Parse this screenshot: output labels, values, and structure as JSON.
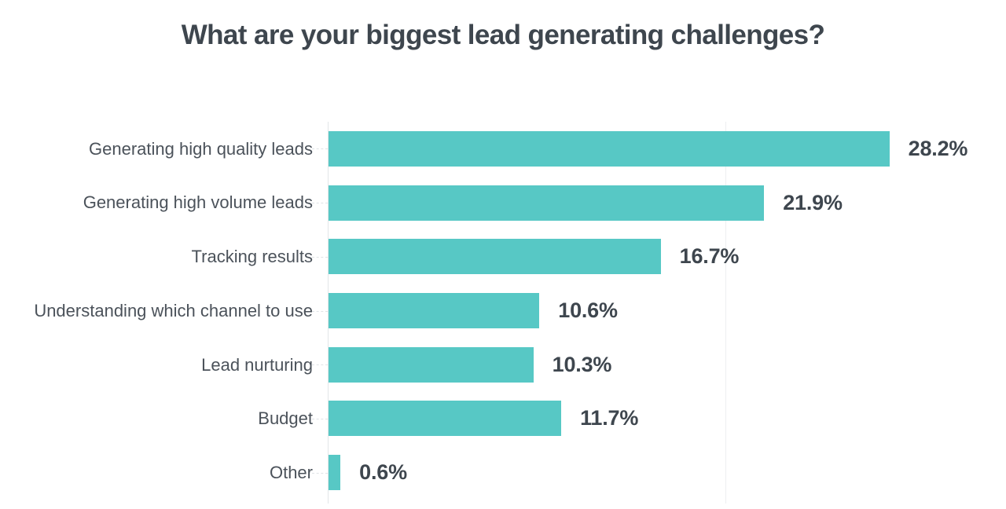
{
  "chart_data": {
    "type": "bar",
    "orientation": "horizontal",
    "title": "What are your biggest lead generating challenges?",
    "categories": [
      "Generating high quality leads",
      "Generating high volume leads",
      "Tracking results",
      "Understanding which channel to use",
      "Lead nurturing",
      "Budget",
      "Other"
    ],
    "values": [
      28.2,
      21.9,
      16.7,
      10.6,
      10.3,
      11.7,
      0.6
    ],
    "value_labels": [
      "28.2%",
      "21.9%",
      "16.7%",
      "10.6%",
      "10.3%",
      "11.7%",
      "0.6%"
    ],
    "unit": "%",
    "xlim": [
      0,
      34.1
    ],
    "gridlines": [
      20
    ],
    "grid": "single-vertical-line",
    "legend": "none",
    "colors": {
      "bar": "#57c8c5",
      "title_text": "#3e464e",
      "category_text": "#4b525a",
      "value_text": "#3e464e",
      "axis_line": "#e2e6e8",
      "gridline": "#edeff1",
      "tick": "#dfe3e6",
      "background": "#ffffff"
    }
  }
}
